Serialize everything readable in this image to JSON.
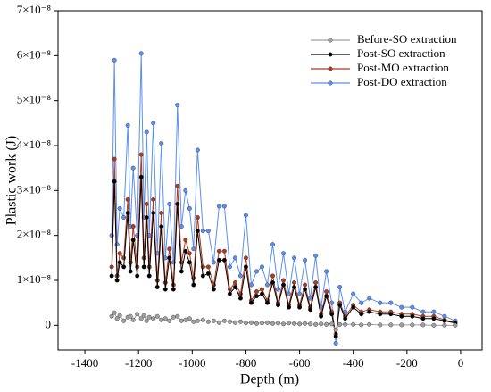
{
  "chart_data": {
    "type": "line",
    "xlabel": "Depth (m)",
    "ylabel": "Plastic work (J)",
    "xlim": [
      -1500,
      80
    ],
    "xticks": [
      -1400,
      -1200,
      -1000,
      -800,
      -600,
      -400,
      -200,
      0
    ],
    "ylim": [
      -5.5e-09,
      7e-08
    ],
    "yticks": [
      0,
      {
        "value": 1e-08,
        "label": "1×10⁻⁸"
      },
      {
        "value": 2e-08,
        "label": "2×10⁻⁸"
      },
      {
        "value": 3e-08,
        "label": "3×10⁻⁸"
      },
      {
        "value": 4e-08,
        "label": "4×10⁻⁸"
      },
      {
        "value": 5e-08,
        "label": "5×10⁻⁸"
      },
      {
        "value": 6e-08,
        "label": "6×10⁻⁸"
      },
      {
        "value": 7e-08,
        "label": "7×10⁻⁸"
      }
    ],
    "legend": "upper right",
    "x": [
      -1300,
      -1290,
      -1280,
      -1270,
      -1255,
      -1240,
      -1230,
      -1220,
      -1205,
      -1190,
      -1180,
      -1170,
      -1160,
      -1145,
      -1130,
      -1115,
      -1100,
      -1085,
      -1070,
      -1055,
      -1040,
      -1025,
      -1010,
      -995,
      -980,
      -960,
      -940,
      -920,
      -900,
      -880,
      -860,
      -840,
      -820,
      -800,
      -780,
      -760,
      -740,
      -720,
      -700,
      -680,
      -660,
      -640,
      -620,
      -600,
      -580,
      -560,
      -540,
      -520,
      -500,
      -480,
      -465,
      -450,
      -430,
      -400,
      -370,
      -340,
      -300,
      -260,
      -220,
      -180,
      -140,
      -100,
      -60,
      -20
    ],
    "series": [
      {
        "name": "Before-SO extraction",
        "color": "#a0a0a0",
        "values": [
          2e-09,
          2.8e-09,
          1.5e-09,
          2.2e-09,
          1e-09,
          1.8e-09,
          2e-09,
          1.2e-09,
          2.5e-09,
          1.5e-09,
          2.2e-09,
          1e-09,
          1.8e-09,
          1.5e-09,
          2e-09,
          1.2e-09,
          1.5e-09,
          1e-09,
          1.8e-09,
          2e-09,
          1e-09,
          1.2e-09,
          1.5e-09,
          8e-10,
          1e-09,
          1.2e-09,
          8e-10,
          1e-09,
          6e-10,
          1e-09,
          8e-10,
          6e-10,
          8e-10,
          5e-10,
          6e-10,
          4e-10,
          5e-10,
          6e-10,
          4e-10,
          5e-10,
          3e-10,
          5e-10,
          4e-10,
          3e-10,
          4e-10,
          3e-10,
          2e-10,
          3e-10,
          2e-10,
          3e-10,
          -1e-09,
          2e-10,
          2e-10,
          2e-10,
          1e-10,
          2e-10,
          1e-10,
          1e-10,
          1e-10,
          1e-10,
          1e-10,
          0,
          0,
          0
        ]
      },
      {
        "name": "Post-SO extraction",
        "color": "#000000",
        "values": [
          1.1e-08,
          3.2e-08,
          1e-08,
          1.4e-08,
          1.3e-08,
          2.5e-08,
          1.2e-08,
          1.9e-08,
          1.1e-08,
          3.3e-08,
          1.3e-08,
          2.4e-08,
          1.1e-08,
          2.5e-08,
          8.5e-09,
          2.2e-08,
          8e-09,
          1.5e-08,
          8e-09,
          2.7e-08,
          1.2e-08,
          1.65e-08,
          1.4e-08,
          9e-09,
          2.1e-08,
          1.1e-08,
          1.15e-08,
          8e-09,
          1.45e-08,
          1.45e-08,
          7e-09,
          8.5e-09,
          6e-09,
          1.3e-08,
          5e-09,
          6.5e-09,
          7e-09,
          5e-09,
          9.5e-09,
          4.5e-09,
          9e-09,
          4e-09,
          8.5e-09,
          4e-09,
          8e-09,
          3.5e-09,
          8.5e-09,
          2e-09,
          6.5e-09,
          2.5e-09,
          -2.5e-09,
          4.5e-09,
          1.5e-09,
          4e-09,
          2.5e-09,
          3e-09,
          2.5e-09,
          2.5e-09,
          2e-09,
          2e-09,
          1.5e-09,
          1.5e-09,
          1e-09,
          5e-10
        ]
      },
      {
        "name": "Post-MO extraction",
        "color": "#b03a1e",
        "values": [
          1.3e-08,
          3.7e-08,
          1.1e-08,
          1.6e-08,
          1.5e-08,
          2.8e-08,
          1.4e-08,
          2.2e-08,
          1.3e-08,
          3.8e-08,
          1.5e-08,
          2.7e-08,
          1.3e-08,
          2.8e-08,
          1e-08,
          2.5e-08,
          9.5e-09,
          1.7e-08,
          9e-09,
          3.1e-08,
          1.4e-08,
          1.9e-08,
          1.6e-08,
          1.05e-08,
          2.4e-08,
          1.3e-08,
          1.3e-08,
          9e-09,
          1.65e-08,
          1.65e-08,
          8e-09,
          9.5e-09,
          7e-09,
          1.5e-08,
          5.5e-09,
          7.5e-09,
          8e-09,
          5.5e-09,
          1.1e-08,
          5e-09,
          1e-08,
          4.5e-09,
          9.5e-09,
          4.5e-09,
          9e-09,
          4e-09,
          9.5e-09,
          2.5e-09,
          7.5e-09,
          3e-09,
          -2e-09,
          5e-09,
          2e-09,
          4.5e-09,
          3e-09,
          3.5e-09,
          3e-09,
          3e-09,
          2.5e-09,
          2.5e-09,
          2e-09,
          2e-09,
          1.2e-09,
          6e-10
        ]
      },
      {
        "name": "Post-DO extraction",
        "color": "#5b8ff0",
        "values": [
          2e-08,
          5.9e-08,
          1.8e-08,
          2.6e-08,
          2.4e-08,
          4.45e-08,
          2.2e-08,
          3.5e-08,
          2e-08,
          6.05e-08,
          2.4e-08,
          4.3e-08,
          2e-08,
          4.5e-08,
          1.6e-08,
          4.05e-08,
          1.5e-08,
          2.7e-08,
          1.4e-08,
          4.9e-08,
          2.2e-08,
          3e-08,
          2.6e-08,
          1.7e-08,
          3.9e-08,
          2.1e-08,
          2.1e-08,
          1.4e-08,
          2.65e-08,
          2.65e-08,
          1.3e-08,
          1.5e-08,
          1.1e-08,
          2.45e-08,
          9e-09,
          1.2e-08,
          1.3e-08,
          9e-09,
          1.8e-08,
          8e-09,
          1.6e-08,
          7e-09,
          1.5e-08,
          7e-09,
          1.45e-08,
          6e-09,
          1.55e-08,
          4e-09,
          1.2e-08,
          5e-09,
          -4e-09,
          8.5e-09,
          3e-09,
          7e-09,
          5e-09,
          6e-09,
          5e-09,
          5e-09,
          4e-09,
          4e-09,
          3e-09,
          3e-09,
          2e-09,
          1e-09
        ]
      }
    ]
  }
}
